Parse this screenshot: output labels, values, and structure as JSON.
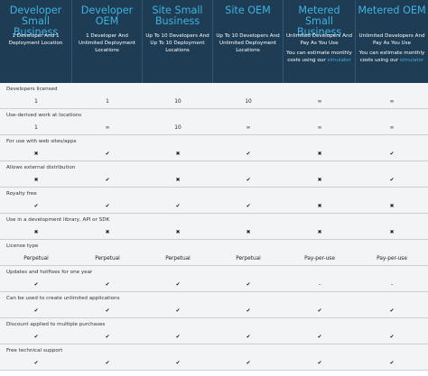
{
  "columns": [
    {
      "title": "Developer Small Business",
      "subtitle": "1 Developer And 1 Deployment Location",
      "note": ""
    },
    {
      "title": "Developer OEM",
      "subtitle": "1 Developer And Unlimited Deployment Locations",
      "note": ""
    },
    {
      "title": "Site Small Business",
      "subtitle": "Up To 10 Developers And Up To 10 Deployment Locations",
      "note": ""
    },
    {
      "title": "Site OEM",
      "subtitle": "Up To 10 Developers And Unlimited Deployment Locations",
      "note": ""
    },
    {
      "title": "Metered Small Business",
      "subtitle": "Unlimited Developers And Pay As You Use",
      "note": "You can estimate monthly costs using our",
      "link": "simulator"
    },
    {
      "title": "Metered OEM",
      "subtitle": "Unlimited Developers And Pay As You Use",
      "note": "You can estimate monthly costs using our",
      "link": "simulator"
    }
  ],
  "features": [
    {
      "label": "Developers licensed",
      "values": [
        "1",
        "1",
        "10",
        "10",
        "∞",
        "∞"
      ]
    },
    {
      "label": "Use-derived work at locations",
      "values": [
        "1",
        "∞",
        "10",
        "∞",
        "∞",
        "∞"
      ]
    },
    {
      "label": "For use with web sites/apps",
      "values": [
        "✖",
        "✔",
        "✖",
        "✔",
        "✖",
        "✔"
      ]
    },
    {
      "label": "Allows external distribution",
      "values": [
        "✖",
        "✔",
        "✖",
        "✔",
        "✖",
        "✔"
      ]
    },
    {
      "label": "Royalty free",
      "values": [
        "✔",
        "✔",
        "✔",
        "✔",
        "✖",
        "✖"
      ]
    },
    {
      "label": "Use in a development library, API or SDK",
      "values": [
        "✖",
        "✖",
        "✖",
        "✖",
        "✖",
        "✖"
      ]
    },
    {
      "label": "License type",
      "values": [
        "Perpetual",
        "Perpetual",
        "Perpetual",
        "Perpetual",
        "Pay-per-use",
        "Pay-per-use"
      ]
    },
    {
      "label": "Updates and hotfixes for one year",
      "values": [
        "✔",
        "✔",
        "✔",
        "✔",
        "-",
        "-"
      ]
    },
    {
      "label": "Can be used to create unlimited applications",
      "values": [
        "✔",
        "✔",
        "✔",
        "✔",
        "✔",
        "✔"
      ]
    },
    {
      "label": "Discount applied to multiple purchases",
      "values": [
        "✔",
        "✔",
        "✔",
        "✔",
        "✔",
        "✔"
      ]
    },
    {
      "label": "Free technical support",
      "values": [
        "✔",
        "✔",
        "✔",
        "✔",
        "✔",
        "✔"
      ]
    }
  ],
  "colors": {
    "header_bg": "#1e3d54",
    "title_accent": "#3fb2e0",
    "row_bg": "#f2f4f6",
    "divider": "#c9cfd4"
  }
}
